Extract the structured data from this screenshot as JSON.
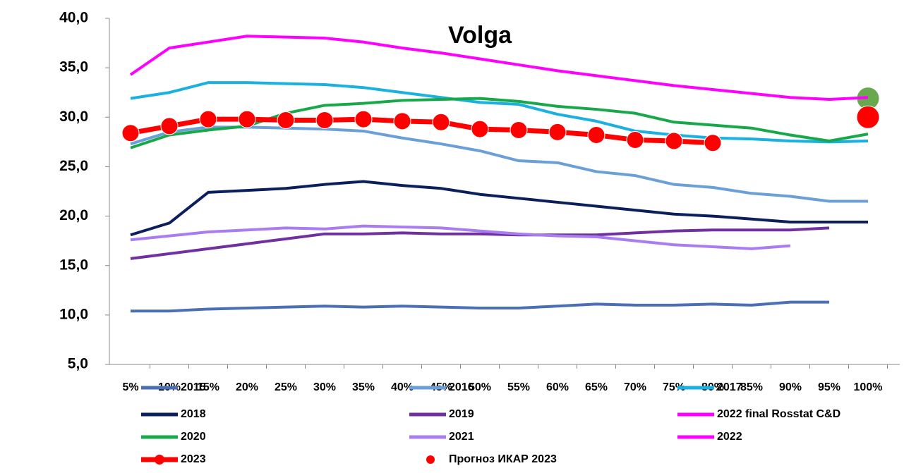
{
  "chart_data": {
    "type": "line",
    "title": "Volga",
    "categories": [
      "5%",
      "10%",
      "15%",
      "20%",
      "25%",
      "30%",
      "35%",
      "40%",
      "45%",
      "50%",
      "55%",
      "60%",
      "65%",
      "70%",
      "75%",
      "80%",
      "85%",
      "90%",
      "95%",
      "100%"
    ],
    "ylim": [
      5,
      40
    ],
    "yticks": [
      {
        "value": 5,
        "label": "5,0"
      },
      {
        "value": 10,
        "label": "10,0"
      },
      {
        "value": 15,
        "label": "15,0"
      },
      {
        "value": 20,
        "label": "20,0"
      },
      {
        "value": 25,
        "label": "25,0"
      },
      {
        "value": 30,
        "label": "30,0"
      },
      {
        "value": 35,
        "label": "35,0"
      },
      {
        "value": 40,
        "label": "40,0"
      }
    ],
    "grid": false,
    "series": [
      {
        "name": "2015",
        "color": "#4a6fb5",
        "values": [
          10.4,
          10.4,
          10.6,
          10.7,
          10.8,
          10.9,
          10.8,
          10.9,
          10.8,
          10.7,
          10.7,
          10.9,
          11.1,
          11.0,
          11.0,
          11.1,
          11.0,
          11.3,
          11.3,
          null
        ]
      },
      {
        "name": "2016",
        "color": "#6a9fd8",
        "values": [
          27.3,
          28.5,
          29.0,
          29.0,
          28.9,
          28.8,
          28.6,
          27.9,
          27.3,
          26.6,
          25.6,
          25.4,
          24.5,
          24.1,
          23.2,
          22.9,
          22.3,
          22.0,
          21.5,
          21.5
        ]
      },
      {
        "name": "2017",
        "color": "#1ab0e0",
        "values": [
          31.9,
          32.5,
          33.5,
          33.5,
          33.4,
          33.3,
          33.0,
          32.5,
          32.0,
          31.5,
          31.3,
          30.3,
          29.6,
          28.6,
          28.2,
          27.9,
          27.8,
          27.6,
          27.5,
          27.6
        ]
      },
      {
        "name": "2018",
        "color": "#0b1f5c",
        "values": [
          18.1,
          19.3,
          22.4,
          22.6,
          22.8,
          23.2,
          23.5,
          23.1,
          22.8,
          22.2,
          21.8,
          21.4,
          21.0,
          20.6,
          20.2,
          20.0,
          19.7,
          19.4,
          19.4,
          19.4
        ]
      },
      {
        "name": "2019",
        "color": "#7030a0",
        "values": [
          15.7,
          16.2,
          16.7,
          17.2,
          17.7,
          18.2,
          18.2,
          18.3,
          18.2,
          18.2,
          18.1,
          18.1,
          18.1,
          18.3,
          18.5,
          18.6,
          18.6,
          18.6,
          18.8,
          null
        ]
      },
      {
        "name": "2022 final Rosstat C&D",
        "color": "#ff00ff",
        "marker_color": "#6aa84f",
        "style": "point",
        "values": [
          null,
          null,
          null,
          null,
          null,
          null,
          null,
          null,
          null,
          null,
          null,
          null,
          null,
          null,
          null,
          null,
          null,
          null,
          null,
          31.9
        ]
      },
      {
        "name": "2020",
        "color": "#17a84a",
        "values": [
          26.9,
          28.2,
          28.7,
          29.1,
          30.4,
          31.2,
          31.4,
          31.7,
          31.8,
          31.9,
          31.6,
          31.1,
          30.8,
          30.4,
          29.5,
          29.2,
          28.9,
          28.2,
          27.6,
          28.3
        ]
      },
      {
        "name": "2021",
        "color": "#a97df0",
        "values": [
          17.6,
          18.0,
          18.4,
          18.6,
          18.8,
          18.7,
          19.0,
          18.9,
          18.8,
          18.5,
          18.2,
          18.0,
          17.9,
          17.5,
          17.1,
          16.9,
          16.7,
          17.0,
          null,
          null
        ]
      },
      {
        "name": "2022",
        "color": "#ff00ff",
        "values": [
          34.3,
          37.0,
          37.6,
          38.2,
          38.1,
          38.0,
          37.6,
          37.0,
          36.5,
          35.9,
          35.3,
          34.7,
          34.2,
          33.7,
          33.2,
          32.8,
          32.4,
          32.0,
          31.8,
          32.0
        ]
      },
      {
        "name": "2023",
        "color": "#ff0000",
        "markers": true,
        "values": [
          28.4,
          29.1,
          29.8,
          29.8,
          29.7,
          29.7,
          29.8,
          29.6,
          29.5,
          28.8,
          28.7,
          28.5,
          28.2,
          27.7,
          27.6,
          27.4,
          null,
          null,
          null,
          null
        ]
      },
      {
        "name": "Прогноз ИКАР 2023",
        "color": "#ff0000",
        "style": "point",
        "values": [
          null,
          null,
          null,
          null,
          null,
          null,
          null,
          null,
          null,
          null,
          null,
          null,
          null,
          null,
          null,
          null,
          null,
          null,
          null,
          30.0
        ]
      }
    ]
  }
}
